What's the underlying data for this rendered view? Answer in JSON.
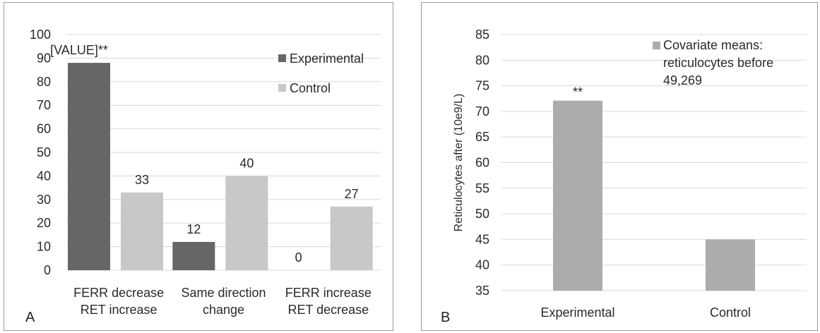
{
  "chart_data": [
    {
      "type": "bar",
      "panel_label": "A",
      "categories": [
        [
          "FERR decrease",
          "RET increase"
        ],
        [
          "Same direction",
          "change"
        ],
        [
          "FERR increase",
          "RET decrease"
        ]
      ],
      "series": [
        {
          "name": "Experimental",
          "color": "#666669",
          "values": [
            88,
            12,
            0
          ],
          "data_labels": [
            "[VALUE]**",
            "12",
            "0"
          ]
        },
        {
          "name": "Control",
          "color": "#c8c8ca",
          "values": [
            33,
            40,
            27
          ],
          "data_labels": [
            "33",
            "40",
            "27"
          ]
        }
      ],
      "ylim": [
        0,
        100
      ],
      "yticks": [
        "0",
        "10",
        "20",
        "30",
        "40",
        "50",
        "60",
        "70",
        "80",
        "90",
        "100"
      ],
      "grid": true,
      "legend_position": "top-right",
      "xlabel": "",
      "ylabel": ""
    },
    {
      "type": "bar",
      "panel_label": "B",
      "categories": [
        "Experimental",
        "Control"
      ],
      "series": [
        {
          "name": "Covariate means: reticulocytes before 49,269",
          "color": "#acacae",
          "values": [
            72.1,
            45
          ],
          "data_labels": [
            "**",
            ""
          ]
        }
      ],
      "legend_lines": [
        "Covariate means:",
        "reticulocytes before",
        "49,269"
      ],
      "ylim": [
        35,
        85
      ],
      "yticks": [
        "35",
        "40",
        "45",
        "50",
        "55",
        "60",
        "65",
        "70",
        "75",
        "80",
        "85"
      ],
      "grid": true,
      "legend_position": "top-right",
      "xlabel": "",
      "ylabel": "Reticulocytes after (10e9/L)"
    }
  ]
}
